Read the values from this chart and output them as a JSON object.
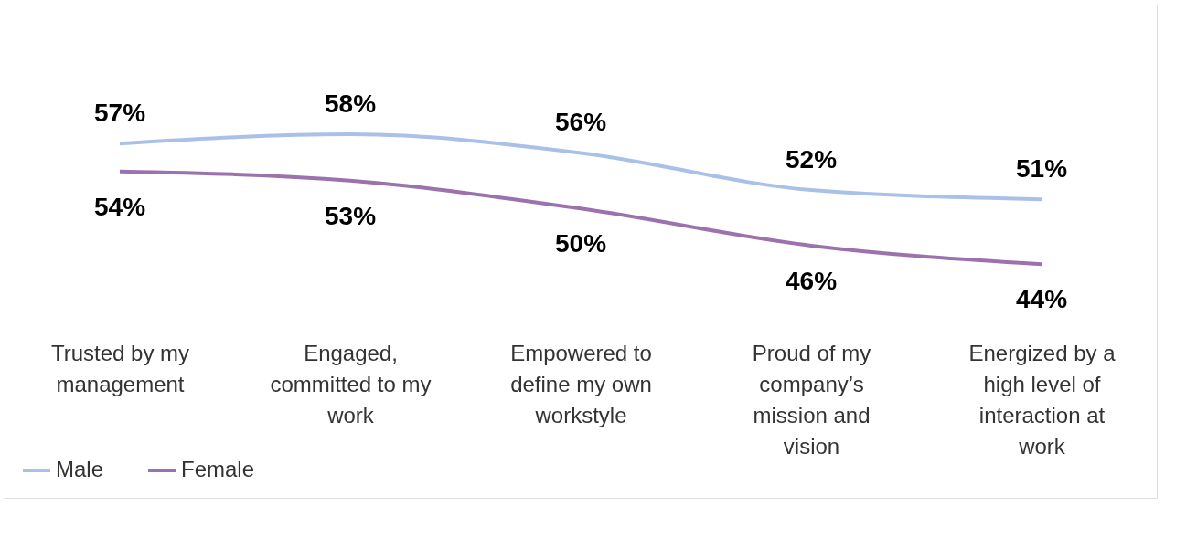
{
  "chart_data": {
    "type": "line",
    "categories": [
      "Trusted by my management",
      "Engaged, committed to my work",
      "Empowered to define my own workstyle",
      "Proud of my company’s mission and vision",
      "Energized by a high level of interaction at work"
    ],
    "series": [
      {
        "name": "Male",
        "color": "#a9c0e8",
        "values": [
          57,
          58,
          56,
          52,
          51
        ],
        "value_labels": [
          "57%",
          "58%",
          "56%",
          "52%",
          "51%"
        ]
      },
      {
        "name": "Female",
        "color": "#9b72ad",
        "values": [
          54,
          53,
          50,
          46,
          44
        ],
        "value_labels": [
          "54%",
          "53%",
          "50%",
          "46%",
          "44%"
        ]
      }
    ],
    "legend": "bottom left",
    "grid": false,
    "marker": "none",
    "line_style": "solid"
  }
}
